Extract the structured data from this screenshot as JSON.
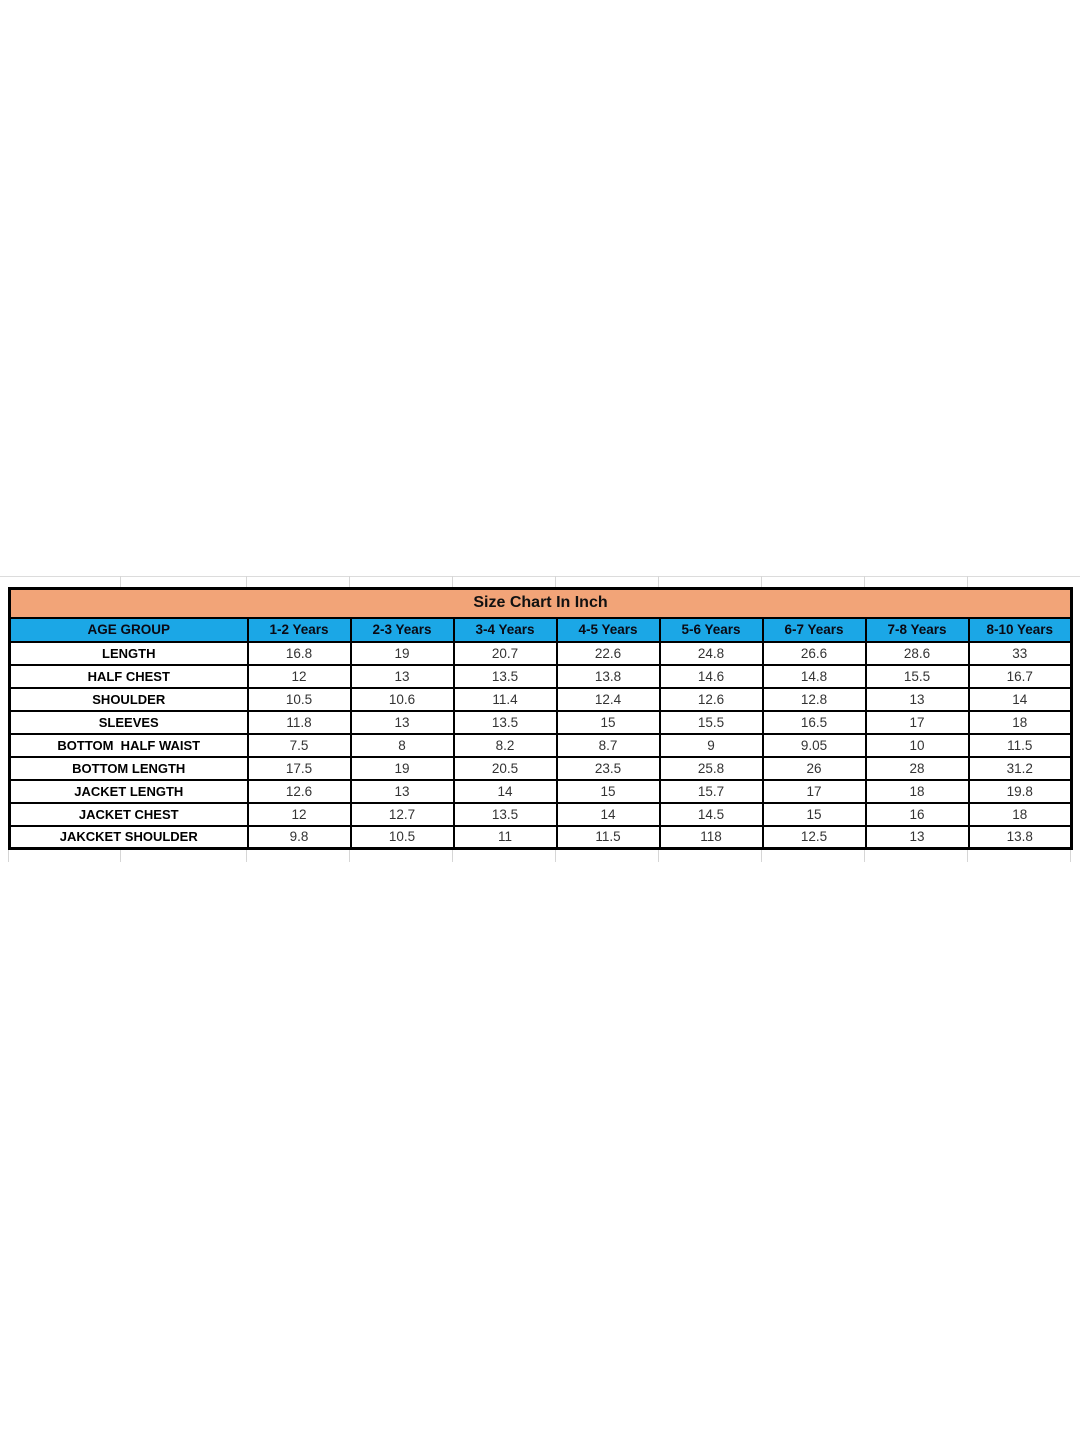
{
  "colors": {
    "title_bg": "#F2A478",
    "header_bg": "#1BA7E6",
    "table_border": "#000000",
    "gridline": "#D6D6D6",
    "value_text": "#333333"
  },
  "chart_data": {
    "type": "table",
    "title": "Size Chart In Inch",
    "columns": [
      "AGE GROUP",
      "1-2 Years",
      "2-3 Years",
      "3-4 Years",
      "4-5 Years",
      "5-6 Years",
      "6-7 Years",
      "7-8 Years",
      "8-10 Years"
    ],
    "rows": [
      {
        "label": "LENGTH",
        "values": [
          "16.8",
          "19",
          "20.7",
          "22.6",
          "24.8",
          "26.6",
          "28.6",
          "33"
        ]
      },
      {
        "label": "HALF CHEST",
        "values": [
          "12",
          "13",
          "13.5",
          "13.8",
          "14.6",
          "14.8",
          "15.5",
          "16.7"
        ]
      },
      {
        "label": "SHOULDER",
        "values": [
          "10.5",
          "10.6",
          "11.4",
          "12.4",
          "12.6",
          "12.8",
          "13",
          "14"
        ]
      },
      {
        "label": "SLEEVES",
        "values": [
          "11.8",
          "13",
          "13.5",
          "15",
          "15.5",
          "16.5",
          "17",
          "18"
        ]
      },
      {
        "label": "BOTTOM  HALF WAIST",
        "values": [
          "7.5",
          "8",
          "8.2",
          "8.7",
          "9",
          "9.05",
          "10",
          "11.5"
        ]
      },
      {
        "label": "BOTTOM LENGTH",
        "values": [
          "17.5",
          "19",
          "20.5",
          "23.5",
          "25.8",
          "26",
          "28",
          "31.2"
        ]
      },
      {
        "label": "JACKET LENGTH",
        "values": [
          "12.6",
          "13",
          "14",
          "15",
          "15.7",
          "17",
          "18",
          "19.8"
        ]
      },
      {
        "label": "JACKET CHEST",
        "values": [
          "12",
          "12.7",
          "13.5",
          "14",
          "14.5",
          "15",
          "16",
          "18"
        ]
      },
      {
        "label": "JAKCKET SHOULDER",
        "values": [
          "9.8",
          "10.5",
          "11",
          "11.5",
          "118",
          "12.5",
          "13",
          "13.8"
        ]
      }
    ]
  }
}
